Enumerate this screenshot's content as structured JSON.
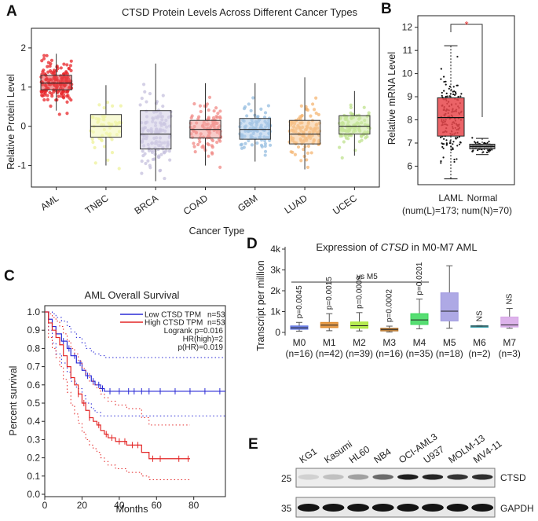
{
  "panels": {
    "a": "A",
    "b": "B",
    "c": "C",
    "d": "D",
    "e": "E"
  },
  "chart_data": [
    {
      "id": "A",
      "type": "box",
      "title": "CTSD Protein Levels Across Different Cancer Types",
      "xlabel": "Cancer Type",
      "ylabel": "Relative Protein Level",
      "ylim": [
        -1.55,
        2.5
      ],
      "yticks": [
        "-1",
        "0",
        "1",
        "2"
      ],
      "yticks_values": [
        -1,
        0,
        1,
        2
      ],
      "categories": [
        "AML",
        "TNBC",
        "BRCA",
        "COAD",
        "GBM",
        "LUAD",
        "UCEC"
      ],
      "colors": [
        "#e8262a",
        "#eef19a",
        "#c6c0de",
        "#f08a86",
        "#96bde0",
        "#f4b673",
        "#bfe28d"
      ],
      "box_colors": [
        "#e8484c",
        "#f3f6b5",
        "#d2cde6",
        "#f3a19d",
        "#acc9e8",
        "#f6c590",
        "#cae8a0"
      ],
      "boxes": [
        {
          "q1": 0.93,
          "median": 1.1,
          "q3": 1.3,
          "lo": 0.4,
          "hi": 1.85,
          "n": 170,
          "spread": 0.35
        },
        {
          "q1": -0.28,
          "median": 0.0,
          "q3": 0.3,
          "lo": -1.0,
          "hi": 1.05,
          "n": 55,
          "spread": 0.45
        },
        {
          "q1": -0.58,
          "median": -0.2,
          "q3": 0.4,
          "lo": -1.4,
          "hi": 1.6,
          "n": 130,
          "spread": 0.6
        },
        {
          "q1": -0.3,
          "median": -0.08,
          "q3": 0.15,
          "lo": -1.0,
          "hi": 1.1,
          "n": 100,
          "spread": 0.4
        },
        {
          "q1": -0.33,
          "median": -0.08,
          "q3": 0.2,
          "lo": -0.9,
          "hi": 1.1,
          "n": 100,
          "spread": 0.35
        },
        {
          "q1": -0.45,
          "median": -0.2,
          "q3": 0.15,
          "lo": -1.1,
          "hi": 1.25,
          "n": 110,
          "spread": 0.45
        },
        {
          "q1": -0.2,
          "median": 0.0,
          "q3": 0.27,
          "lo": -0.75,
          "hi": 0.9,
          "n": 100,
          "spread": 0.3
        }
      ]
    },
    {
      "id": "B",
      "type": "box",
      "ylabel": "Relative mRNA Level",
      "ylim": [
        5.2,
        12.5
      ],
      "yticks": [
        "6",
        "7",
        "8",
        "9",
        "10",
        "11",
        "12"
      ],
      "yticks_values": [
        6,
        7,
        8,
        9,
        10,
        11,
        12
      ],
      "categories": [
        "LAML",
        "Normal"
      ],
      "subtitle": "(num(L)=173; num(N)=70)",
      "significance": "*",
      "boxes": [
        {
          "q1": 7.3,
          "median": 8.1,
          "q3": 8.95,
          "lo": 5.45,
          "hi": 11.2,
          "n": 173,
          "spread": 0.9,
          "color": "#e8484c"
        },
        {
          "q1": 6.75,
          "median": 6.85,
          "q3": 6.95,
          "lo": 6.5,
          "hi": 7.2,
          "n": 70,
          "spread": 0.12,
          "color": "#888888"
        }
      ]
    },
    {
      "id": "C",
      "type": "line",
      "title": "AML Overall Survival",
      "xlabel": "Months",
      "ylabel": "Percent survival",
      "xlim": [
        0,
        97
      ],
      "ylim": [
        0,
        1.0
      ],
      "xticks": [
        "0",
        "20",
        "40",
        "60",
        "80"
      ],
      "xticks_values": [
        0,
        20,
        40,
        60,
        80
      ],
      "yticks": [
        "0.0",
        "0.1",
        "0.2",
        "0.3",
        "0.4",
        "0.5",
        "0.6",
        "0.7",
        "0.8",
        "0.9",
        "1.0"
      ],
      "yticks_values": [
        0,
        0.1,
        0.2,
        0.3,
        0.4,
        0.5,
        0.6,
        0.7,
        0.8,
        0.9,
        1.0
      ],
      "legend": [
        {
          "name": "Low CTSD TPM",
          "n": "n=53",
          "color": "#2b2bd6"
        },
        {
          "name": "High CTSD TPM",
          "n": "n=53",
          "color": "#e32626"
        }
      ],
      "stats": [
        "Logrank p=0.016",
        "HR(high)=2",
        "p(HR)=0.019"
      ],
      "series": [
        {
          "name": "Low CTSD TPM",
          "color": "#2b2bd6",
          "x": [
            0,
            2,
            4,
            6,
            9,
            12,
            14,
            17,
            20,
            22,
            25,
            27,
            30,
            32,
            97
          ],
          "y": [
            1.0,
            0.96,
            0.92,
            0.88,
            0.84,
            0.8,
            0.76,
            0.72,
            0.68,
            0.65,
            0.62,
            0.6,
            0.58,
            0.565,
            0.565
          ],
          "upper": [
            1.0,
            1.0,
            0.99,
            0.97,
            0.95,
            0.92,
            0.89,
            0.86,
            0.83,
            0.8,
            0.78,
            0.77,
            0.76,
            0.75,
            0.75
          ],
          "lower": [
            1.0,
            0.9,
            0.83,
            0.77,
            0.72,
            0.67,
            0.62,
            0.58,
            0.54,
            0.5,
            0.47,
            0.45,
            0.43,
            0.43,
            0.43
          ],
          "censor": [
            10,
            13,
            16,
            19,
            23,
            26,
            29,
            31,
            35,
            40,
            45,
            48,
            52,
            56,
            62,
            70,
            78,
            86,
            94
          ]
        },
        {
          "name": "High CTSD TPM",
          "color": "#e32626",
          "x": [
            0,
            2,
            4,
            6,
            8,
            10,
            12,
            14,
            16,
            18,
            20,
            22,
            24,
            26,
            28,
            30,
            32,
            34,
            38,
            44,
            52,
            56,
            78
          ],
          "y": [
            1.0,
            0.94,
            0.9,
            0.86,
            0.82,
            0.76,
            0.7,
            0.64,
            0.6,
            0.55,
            0.5,
            0.46,
            0.42,
            0.4,
            0.38,
            0.35,
            0.33,
            0.31,
            0.29,
            0.27,
            0.23,
            0.195,
            0.195
          ],
          "upper": [
            1.0,
            0.99,
            0.97,
            0.95,
            0.92,
            0.88,
            0.84,
            0.8,
            0.77,
            0.73,
            0.69,
            0.66,
            0.62,
            0.6,
            0.58,
            0.55,
            0.53,
            0.51,
            0.49,
            0.47,
            0.42,
            0.38,
            0.38
          ],
          "lower": [
            1.0,
            0.86,
            0.8,
            0.75,
            0.7,
            0.63,
            0.56,
            0.49,
            0.44,
            0.39,
            0.34,
            0.3,
            0.27,
            0.25,
            0.23,
            0.2,
            0.18,
            0.16,
            0.14,
            0.12,
            0.1,
            0.08,
            0.08
          ],
          "censor": [
            18,
            21,
            24,
            29,
            33,
            36,
            40,
            43,
            47,
            50,
            58,
            62,
            72,
            77
          ]
        }
      ]
    },
    {
      "id": "D",
      "type": "box",
      "title_pre": "Expression of ",
      "title_gene": "CTSD",
      "title_post": " in M0-M7 AML",
      "ylabel": "Transcript per million",
      "ylim": [
        0,
        4000
      ],
      "yticks": [
        "0",
        "1k",
        "2k",
        "3k",
        "4k"
      ],
      "yticks_values": [
        0,
        1000,
        2000,
        3000,
        4000
      ],
      "bracket_label": "vs M5",
      "categories": [
        "M0",
        "M1",
        "M2",
        "M3",
        "M4",
        "M5",
        "M6",
        "M7"
      ],
      "counts": [
        "(n=16)",
        "(n=42)",
        "(n=39)",
        "(n=16)",
        "(n=35)",
        "(n=18)",
        "(n=2)",
        "(n=3)"
      ],
      "pvalues": [
        "p=0.0045",
        "p=0.0015",
        "p=0.0009",
        "p=0.0002",
        "p=0.0201",
        "",
        "NS",
        "NS"
      ],
      "colors": [
        "#5a6fe0",
        "#e08a2a",
        "#a9e634",
        "#b3732a",
        "#39d85a",
        "#a09ae0",
        "#41a8b3",
        "#d7a6e8"
      ],
      "boxes": [
        {
          "q1": 150,
          "median": 220,
          "q3": 310,
          "lo": 60,
          "hi": 480
        },
        {
          "q1": 230,
          "median": 350,
          "q3": 480,
          "lo": 80,
          "hi": 900
        },
        {
          "q1": 200,
          "median": 320,
          "q3": 500,
          "lo": 70,
          "hi": 950
        },
        {
          "q1": 70,
          "median": 140,
          "q3": 200,
          "lo": 20,
          "hi": 300
        },
        {
          "q1": 380,
          "median": 600,
          "q3": 900,
          "lo": 170,
          "hi": 1600
        },
        {
          "q1": 550,
          "median": 1020,
          "q3": 1900,
          "lo": 200,
          "hi": 3200
        },
        {
          "q1": 280,
          "median": 300,
          "q3": 320,
          "lo": 270,
          "hi": 330
        },
        {
          "q1": 260,
          "median": 360,
          "q3": 740,
          "lo": 200,
          "hi": 1150
        }
      ]
    }
  ],
  "western": {
    "lanes": [
      "KG1",
      "Kasumi",
      "HL60",
      "NB4",
      "OCI-AML3",
      "U937",
      "MOLM-13",
      "MV4-11"
    ],
    "markers": [
      "25",
      "35"
    ],
    "bands": [
      "CTSD",
      "GAPDH"
    ],
    "ctsd_intensity": [
      0.12,
      0.2,
      0.35,
      0.6,
      0.95,
      0.92,
      0.85,
      0.88
    ],
    "gapdh_intensity": [
      1,
      1,
      1,
      1,
      1,
      1,
      1,
      1
    ]
  }
}
